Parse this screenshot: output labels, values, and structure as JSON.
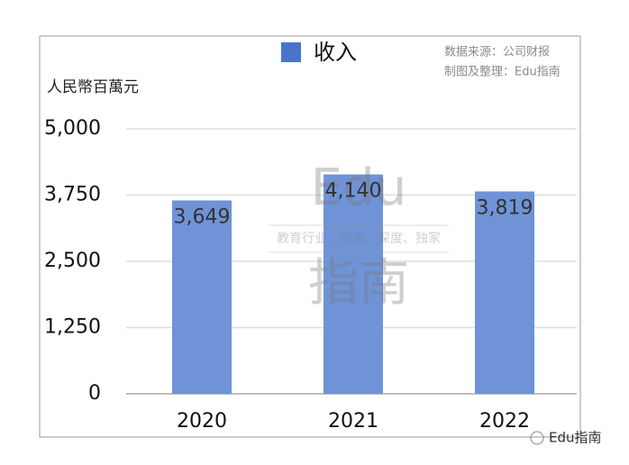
{
  "chart_data": {
    "type": "bar",
    "y_label": "人民幣百萬元",
    "source_lines": [
      "数据来源：公司财报",
      "制图及整理：Edu指南"
    ],
    "watermark": {
      "logo": "Edu",
      "tagline": "教育行业，前沿、深度、独家",
      "name": "指南"
    },
    "footer": "Edu指南",
    "categories": [
      "2020",
      "2021",
      "2022"
    ],
    "series": [
      {
        "name": "收入",
        "color": "#6f93d6",
        "values": [
          3649,
          4140,
          3819
        ],
        "value_labels": [
          "3,649",
          "4,140",
          "3,819"
        ]
      }
    ],
    "ylim": [
      0,
      5000
    ],
    "yticks": [
      0,
      {
        "value": 1250,
        "label": "1,250"
      },
      {
        "value": 2500,
        "label": "2,500"
      },
      {
        "value": 3750,
        "label": "3,750"
      },
      {
        "value": 5000,
        "label": "5,000"
      }
    ],
    "grid": true
  }
}
